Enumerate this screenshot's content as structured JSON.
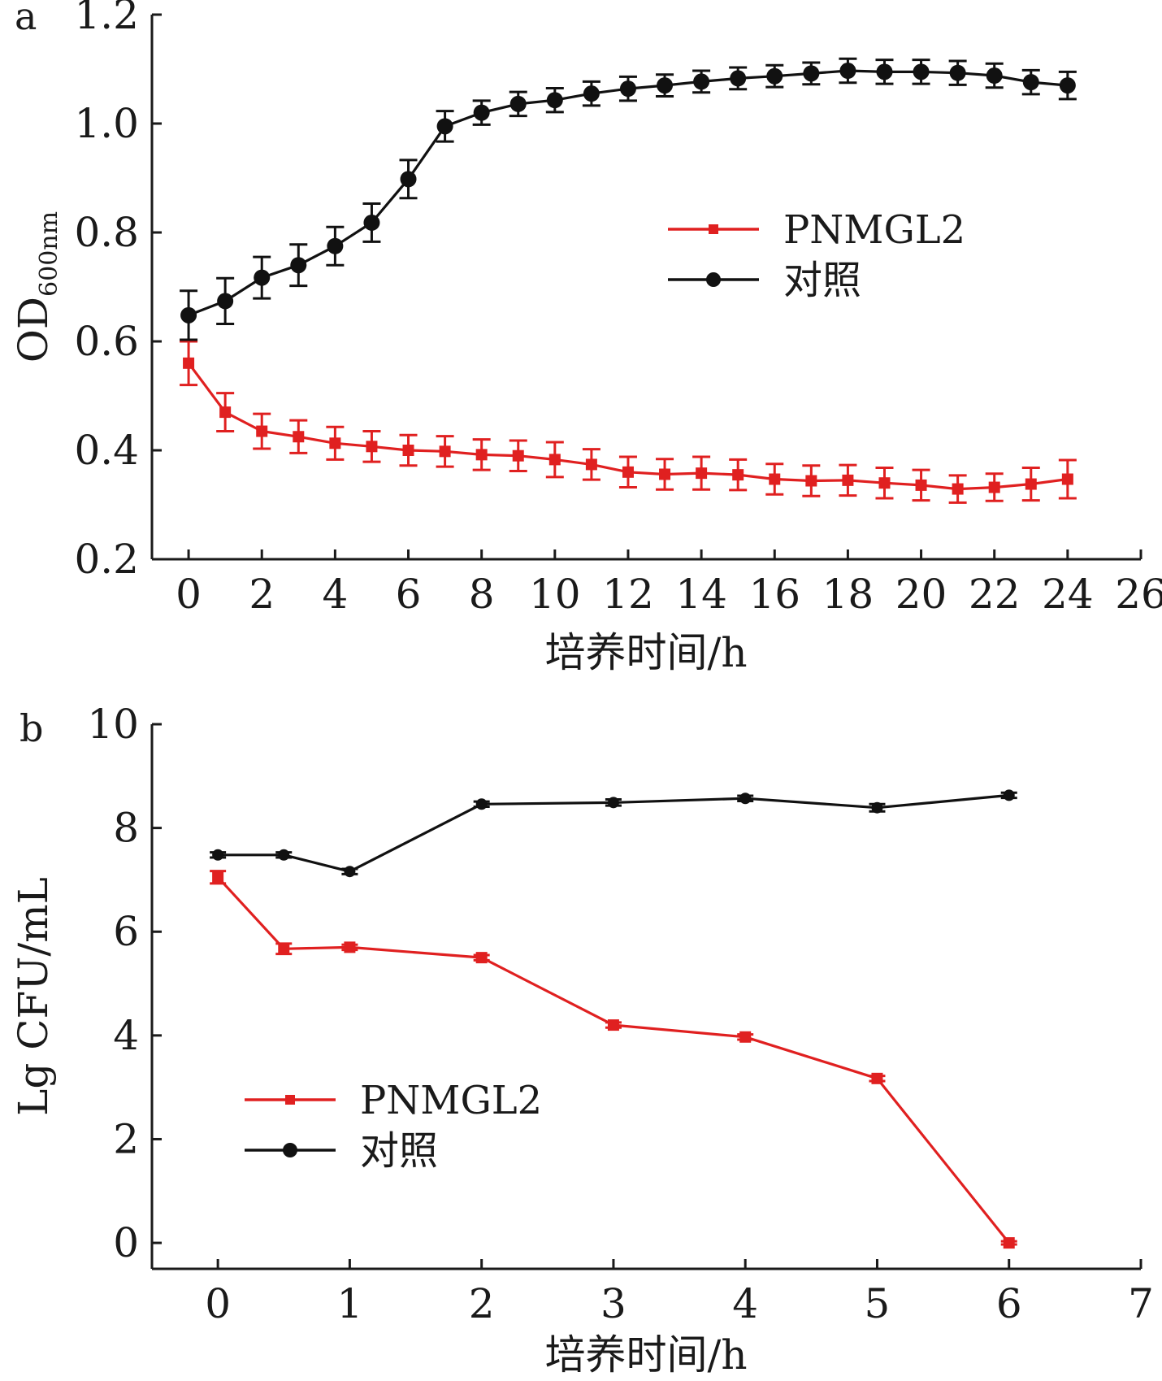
{
  "colors": {
    "pnmgl2": "#e02020",
    "control": "#111111",
    "axis": "#1a1a1a"
  },
  "chart_data": [
    {
      "type": "line",
      "panel_label": "a",
      "title": "",
      "xlabel": "培养时间/h",
      "ylabel": {
        "main": "OD",
        "sub": "600nm"
      },
      "xlim": [
        -1,
        26
      ],
      "ylim": [
        0.2,
        1.2
      ],
      "xticks": [
        0,
        2,
        4,
        6,
        8,
        10,
        12,
        14,
        16,
        18,
        20,
        22,
        24,
        26
      ],
      "xtick_labels": [
        "0",
        "2",
        "4",
        "6",
        "8",
        "10",
        "12",
        "14",
        "16",
        "18",
        "20",
        "22",
        "24",
        "26"
      ],
      "yticks": [
        0.2,
        0.4,
        0.6,
        0.8,
        1.0,
        1.2
      ],
      "ytick_labels": [
        "0.2",
        "0.4",
        "0.6",
        "0.8",
        "1.0",
        "1.2"
      ],
      "legend": {
        "position": "center-right"
      },
      "x": [
        0,
        1,
        2,
        3,
        4,
        5,
        6,
        7,
        8,
        9,
        10,
        11,
        12,
        13,
        14,
        15,
        16,
        17,
        18,
        19,
        20,
        21,
        22,
        23,
        24
      ],
      "series": [
        {
          "name": "PNMGL2",
          "color": "#e02020",
          "marker": "square",
          "values": [
            0.56,
            0.47,
            0.435,
            0.425,
            0.413,
            0.407,
            0.4,
            0.398,
            0.392,
            0.39,
            0.383,
            0.374,
            0.36,
            0.356,
            0.358,
            0.355,
            0.347,
            0.344,
            0.345,
            0.34,
            0.336,
            0.329,
            0.332,
            0.338,
            0.347
          ],
          "errors": [
            0.04,
            0.035,
            0.032,
            0.03,
            0.03,
            0.028,
            0.028,
            0.028,
            0.028,
            0.028,
            0.032,
            0.028,
            0.028,
            0.028,
            0.03,
            0.028,
            0.028,
            0.028,
            0.028,
            0.028,
            0.028,
            0.025,
            0.025,
            0.03,
            0.035
          ]
        },
        {
          "name": "对照",
          "color": "#111111",
          "marker": "circle",
          "values": [
            0.648,
            0.674,
            0.717,
            0.74,
            0.775,
            0.818,
            0.898,
            0.995,
            1.02,
            1.036,
            1.043,
            1.055,
            1.064,
            1.07,
            1.077,
            1.083,
            1.087,
            1.092,
            1.097,
            1.095,
            1.095,
            1.093,
            1.088,
            1.076,
            1.07
          ]
        }
      ],
      "control_errors": [
        0.045,
        0.042,
        0.038,
        0.038,
        0.035,
        0.035,
        0.035,
        0.028,
        0.022,
        0.022,
        0.022,
        0.022,
        0.022,
        0.02,
        0.02,
        0.02,
        0.02,
        0.02,
        0.022,
        0.022,
        0.022,
        0.022,
        0.022,
        0.022,
        0.025
      ]
    },
    {
      "type": "line",
      "panel_label": "b",
      "title": "",
      "xlabel": "培养时间/h",
      "ylabel": "Lg CFU/mL",
      "xlim": [
        -0.5,
        7
      ],
      "ylim": [
        -0.5,
        10
      ],
      "xticks": [
        0,
        1,
        2,
        3,
        4,
        5,
        6,
        7
      ],
      "xtick_labels": [
        "0",
        "1",
        "2",
        "3",
        "4",
        "5",
        "6",
        "7"
      ],
      "yticks": [
        0,
        2,
        4,
        6,
        8,
        10
      ],
      "ytick_labels": [
        "0",
        "2",
        "4",
        "6",
        "8",
        "10"
      ],
      "legend": {
        "position": "bottom-left"
      },
      "x": [
        0,
        0.5,
        1,
        2,
        3,
        4,
        5,
        6
      ],
      "series": [
        {
          "name": "PNMGL2",
          "color": "#e02020",
          "marker": "square",
          "values": [
            7.05,
            5.67,
            5.7,
            5.5,
            4.2,
            3.97,
            3.17,
            0
          ],
          "errors": [
            0.12,
            0.1,
            0.05,
            0.05,
            0.05,
            0.05,
            0.05,
            0.03
          ]
        },
        {
          "name": "对照",
          "color": "#111111",
          "marker": "circle",
          "values": [
            7.48,
            7.48,
            7.16,
            8.46,
            8.49,
            8.57,
            8.39,
            8.63
          ],
          "errors": [
            0.05,
            0.05,
            0.05,
            0.05,
            0.06,
            0.05,
            0.07,
            0.05
          ]
        }
      ]
    }
  ]
}
